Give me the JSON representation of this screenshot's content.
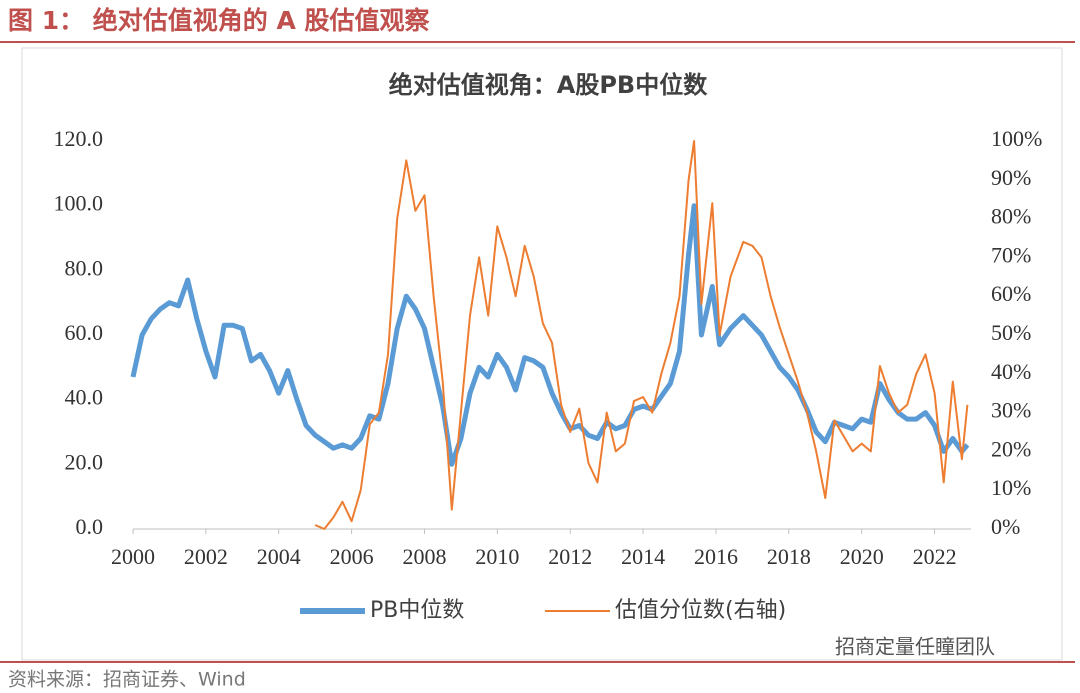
{
  "header": "图 1： 绝对估值视角的 A 股估值观察",
  "source": "资料来源：招商证券、Wind",
  "watermark": "招商定量任瞳团队",
  "chart_data": {
    "type": "line",
    "title": "绝对估值视角：A股PB中位数",
    "x": [
      2000.0,
      2000.25,
      2000.5,
      2000.75,
      2001.0,
      2001.25,
      2001.5,
      2001.75,
      2002.0,
      2002.25,
      2002.5,
      2002.75,
      2003.0,
      2003.25,
      2003.5,
      2003.75,
      2004.0,
      2004.25,
      2004.5,
      2004.75,
      2005.0,
      2005.25,
      2005.5,
      2005.75,
      2006.0,
      2006.25,
      2006.5,
      2006.75,
      2007.0,
      2007.25,
      2007.5,
      2007.75,
      2008.0,
      2008.25,
      2008.5,
      2008.75,
      2009.0,
      2009.25,
      2009.5,
      2009.75,
      2010.0,
      2010.25,
      2010.5,
      2010.75,
      2011.0,
      2011.25,
      2011.5,
      2011.75,
      2012.0,
      2012.25,
      2012.5,
      2012.75,
      2013.0,
      2013.25,
      2013.5,
      2013.75,
      2014.0,
      2014.25,
      2014.5,
      2014.75,
      2015.0,
      2015.25,
      2015.4,
      2015.6,
      2015.9,
      2016.1,
      2016.4,
      2016.75,
      2017.0,
      2017.25,
      2017.5,
      2017.75,
      2018.0,
      2018.25,
      2018.5,
      2018.75,
      2019.0,
      2019.25,
      2019.5,
      2019.75,
      2020.0,
      2020.25,
      2020.5,
      2020.75,
      2021.0,
      2021.25,
      2021.5,
      2021.75,
      2022.0,
      2022.25,
      2022.5,
      2022.75,
      2022.9
    ],
    "series": [
      {
        "name": "PB中位数",
        "color": "#5b9bd5",
        "values": [
          47,
          60,
          65,
          68,
          70,
          69,
          77,
          65,
          55,
          47,
          63,
          63,
          62,
          52,
          54,
          49,
          42,
          49,
          40,
          32,
          29,
          27,
          25,
          26,
          25,
          28,
          35,
          34,
          45,
          62,
          72,
          68,
          62,
          50,
          38,
          20,
          28,
          42,
          50,
          47,
          54,
          50,
          43,
          53,
          52,
          50,
          42,
          36,
          31,
          32,
          29,
          28,
          33,
          31,
          32,
          37,
          38,
          37,
          41,
          45,
          55,
          85,
          100,
          60,
          75,
          57,
          62,
          66,
          63,
          60,
          55,
          50,
          47,
          43,
          37,
          30,
          27,
          33,
          32,
          31,
          34,
          33,
          45,
          40,
          36,
          34,
          34,
          36,
          32,
          24,
          28,
          24,
          26
        ]
      },
      {
        "name": "估值分位数(右轴)",
        "color": "#ed7d31",
        "axis": "y2",
        "values": [
          null,
          null,
          null,
          null,
          null,
          null,
          null,
          null,
          null,
          null,
          null,
          null,
          null,
          null,
          null,
          null,
          null,
          null,
          null,
          null,
          1,
          0,
          3,
          7,
          2,
          10,
          27,
          30,
          45,
          80,
          95,
          82,
          86,
          60,
          38,
          5,
          30,
          55,
          70,
          55,
          78,
          70,
          60,
          73,
          65,
          53,
          48,
          32,
          25,
          31,
          17,
          12,
          30,
          20,
          22,
          33,
          34,
          30,
          40,
          48,
          60,
          90,
          100,
          58,
          84,
          50,
          65,
          74,
          73,
          70,
          60,
          52,
          45,
          38,
          30,
          20,
          8,
          28,
          24,
          20,
          22,
          20,
          42,
          35,
          30,
          32,
          40,
          45,
          35,
          12,
          38,
          18,
          32
        ]
      }
    ],
    "xlim": [
      2000,
      2023
    ],
    "xticks": [
      2000,
      2002,
      2004,
      2006,
      2008,
      2010,
      2012,
      2014,
      2016,
      2018,
      2020,
      2022
    ],
    "ylim": [
      0,
      120
    ],
    "yticks": [
      {
        "value": 0,
        "label": "0.0"
      },
      {
        "value": 20,
        "label": "20.0"
      },
      {
        "value": 40,
        "label": "40.0"
      },
      {
        "value": 60,
        "label": "60.0"
      },
      {
        "value": 80,
        "label": "80.0"
      },
      {
        "value": 100,
        "label": "100.0"
      },
      {
        "value": 120,
        "label": "120.0"
      }
    ],
    "y2lim": [
      0,
      100
    ],
    "y2ticks": [
      {
        "value": 0,
        "label": "0%"
      },
      {
        "value": 10,
        "label": "10%"
      },
      {
        "value": 20,
        "label": "20%"
      },
      {
        "value": 30,
        "label": "30%"
      },
      {
        "value": 40,
        "label": "40%"
      },
      {
        "value": 50,
        "label": "50%"
      },
      {
        "value": 60,
        "label": "60%"
      },
      {
        "value": 70,
        "label": "70%"
      },
      {
        "value": 80,
        "label": "80%"
      },
      {
        "value": 90,
        "label": "90%"
      },
      {
        "value": 100,
        "label": "100%"
      }
    ],
    "legend": "bottom"
  }
}
